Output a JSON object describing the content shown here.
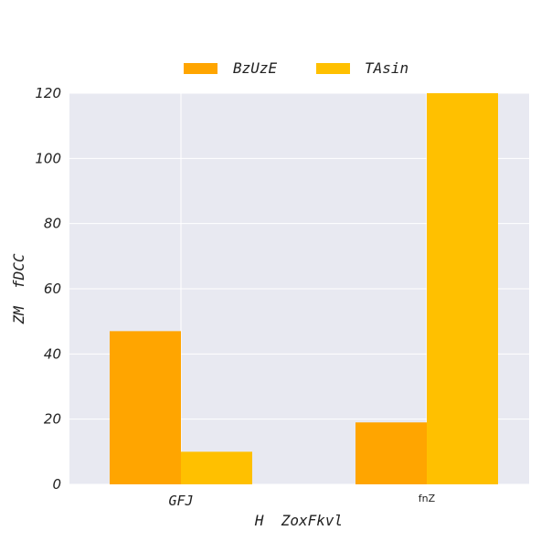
{
  "chart_data": {
    "type": "bar",
    "categories": [
      "GFJ",
      "fnZ"
    ],
    "series": [
      {
        "name": "BzUzE",
        "values": [
          47,
          19
        ],
        "color": "#FFA500"
      },
      {
        "name": "TAsin",
        "values": [
          10,
          120
        ],
        "color": "#FFC000"
      }
    ],
    "xlabel": "H  ZoxFkvl",
    "ylabel": "ZM  fDCC",
    "ylim": [
      0,
      120
    ],
    "yticks": [
      0,
      20,
      40,
      60,
      80,
      100,
      120
    ],
    "grid": true,
    "legend_position": "top-center",
    "background_color": "#E8E9F1"
  }
}
